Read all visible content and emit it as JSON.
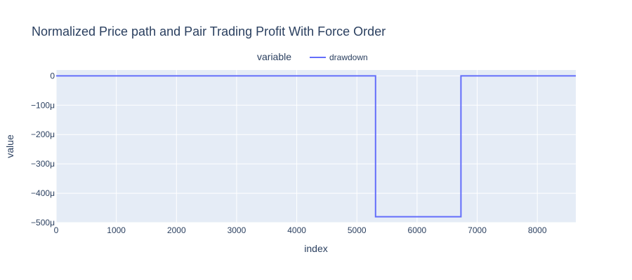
{
  "chart_data": {
    "type": "line",
    "title": "Normalized Price path and Pair Trading Profit With Force Order",
    "xlabel": "index",
    "ylabel": "value",
    "legend": {
      "title": "variable",
      "placement": "top-center",
      "entries": [
        "drawdown"
      ]
    },
    "xlim": [
      0,
      8640
    ],
    "ylim": [
      -500,
      20
    ],
    "y_unit": "μ",
    "x_ticks": [
      0,
      1000,
      2000,
      3000,
      4000,
      5000,
      6000,
      7000,
      8000
    ],
    "x_tick_labels": [
      "0",
      "1000",
      "2000",
      "3000",
      "4000",
      "5000",
      "6000",
      "7000",
      "8000"
    ],
    "y_ticks": [
      0,
      -100,
      -200,
      -300,
      -400,
      -500
    ],
    "y_tick_labels": [
      "0",
      "−100μ",
      "−200μ",
      "−300μ",
      "−400μ",
      "−500μ"
    ],
    "grid": true,
    "series": [
      {
        "name": "drawdown",
        "color": "#636efa",
        "x": [
          0,
          5310,
          5310,
          6730,
          6730,
          8640
        ],
        "y": [
          0,
          0,
          -480,
          -480,
          0,
          0
        ]
      }
    ]
  },
  "colors": {
    "plot_background": "#e5ecf6",
    "grid": "#ffffff",
    "text": "#2a3f5f"
  }
}
